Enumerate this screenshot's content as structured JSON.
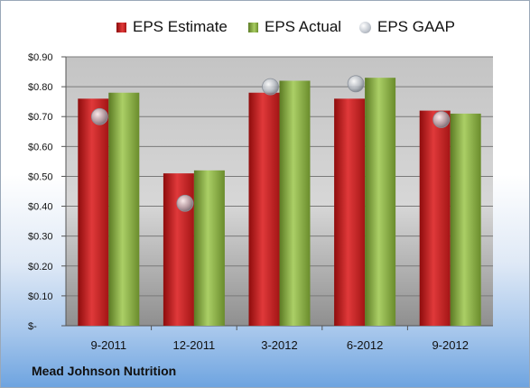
{
  "chart_data": {
    "type": "bar",
    "categories": [
      "9-2011",
      "12-2011",
      "3-2012",
      "6-2012",
      "9-2012"
    ],
    "series": [
      {
        "name": "EPS Estimate",
        "kind": "bar",
        "color": "#c62020",
        "values": [
          0.76,
          0.51,
          0.78,
          0.76,
          0.72
        ]
      },
      {
        "name": "EPS Actual",
        "kind": "bar",
        "color": "#8fb547",
        "values": [
          0.78,
          0.52,
          0.82,
          0.83,
          0.71
        ]
      },
      {
        "name": "EPS GAAP",
        "kind": "marker",
        "color": "#b8bec7",
        "values": [
          0.7,
          0.41,
          0.8,
          0.81,
          0.69
        ]
      }
    ],
    "yticks": [
      "$-",
      "$0.10",
      "$0.20",
      "$0.30",
      "$0.40",
      "$0.50",
      "$0.60",
      "$0.70",
      "$0.80",
      "$0.90"
    ],
    "ylim": [
      0,
      0.9
    ],
    "grid": true,
    "legend": "top"
  },
  "footer": {
    "company": "Mead Johnson Nutrition"
  }
}
